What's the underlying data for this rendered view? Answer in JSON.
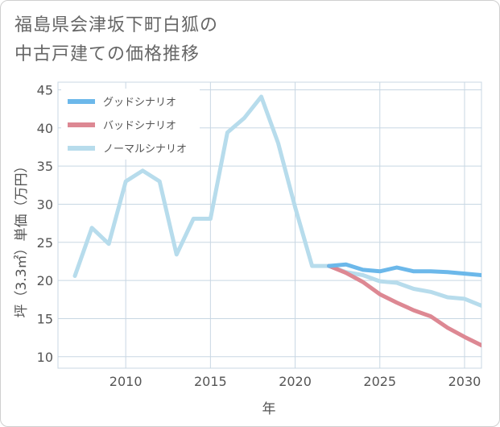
{
  "title": {
    "line1": "福島県会津坂下町白狐の",
    "line2": "中古戸建ての価格推移"
  },
  "chart_data": {
    "type": "line",
    "xlabel": "年",
    "ylabel": "坪（3.3㎡）単価（万円）",
    "xlim": [
      2006,
      2031
    ],
    "ylim": [
      8.5,
      46
    ],
    "x_ticks": [
      "2010",
      "2015",
      "2020",
      "2025",
      "2030"
    ],
    "x_tick_values": [
      2010,
      2015,
      2020,
      2025,
      2030
    ],
    "y_ticks": [
      "10",
      "15",
      "20",
      "25",
      "30",
      "35",
      "40",
      "45"
    ],
    "y_tick_values": [
      10,
      15,
      20,
      25,
      30,
      35,
      40,
      45
    ],
    "grid": true,
    "legend_position": "top-left",
    "series": [
      {
        "name": "グッドシナリオ",
        "color": "#6cb8ea",
        "x": [
          2022,
          2023,
          2024,
          2025,
          2026,
          2027,
          2028,
          2029,
          2030,
          2031
        ],
        "values": [
          21.9,
          22.1,
          21.4,
          21.2,
          21.7,
          21.2,
          21.2,
          21.1,
          20.9,
          20.7
        ]
      },
      {
        "name": "バッドシナリオ",
        "color": "#dd8893",
        "x": [
          2022,
          2023,
          2024,
          2025,
          2026,
          2027,
          2028,
          2029,
          2030,
          2031
        ],
        "values": [
          21.9,
          21.0,
          19.8,
          18.2,
          17.1,
          16.1,
          15.3,
          13.8,
          12.6,
          11.5
        ]
      },
      {
        "name": "ノーマルシナリオ",
        "color": "#b7dcec",
        "x": [
          2007,
          2008,
          2009,
          2010,
          2011,
          2012,
          2013,
          2014,
          2015,
          2016,
          2017,
          2018,
          2019,
          2020,
          2021,
          2022,
          2023,
          2024,
          2025,
          2026,
          2027,
          2028,
          2029,
          2030,
          2031
        ],
        "values": [
          20.6,
          26.9,
          24.8,
          33.0,
          34.4,
          33.0,
          23.4,
          28.1,
          28.1,
          39.4,
          41.3,
          44.1,
          38.0,
          29.6,
          21.9,
          21.9,
          21.1,
          20.7,
          19.9,
          19.7,
          18.9,
          18.5,
          17.8,
          17.6,
          16.7
        ]
      }
    ]
  }
}
